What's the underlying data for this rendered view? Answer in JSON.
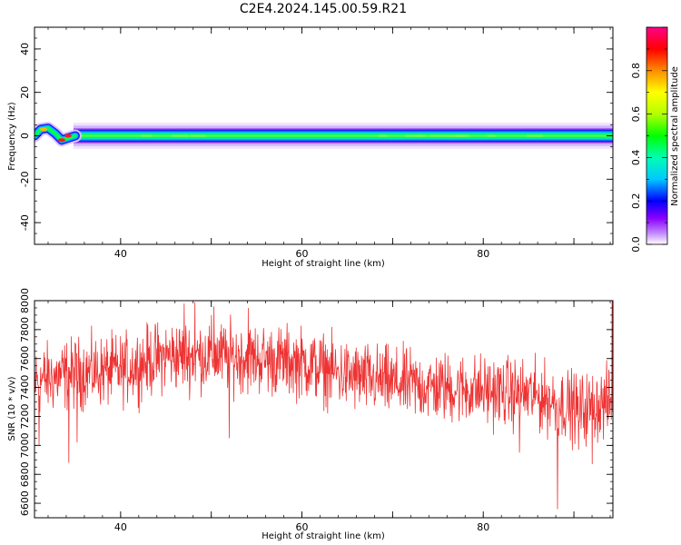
{
  "title": "C2E4.2024.145.00.59.R21",
  "chart_data": [
    {
      "type": "heatmap",
      "xlabel": "Height of straight line (km)",
      "ylabel": "Frequency (Hz)",
      "xlim": [
        30.5,
        94.3
      ],
      "ylim": [
        -50,
        50
      ],
      "xticks": [
        40,
        60,
        80
      ],
      "yticks": [
        -40,
        -20,
        0,
        20,
        40
      ],
      "colorbar": {
        "label": "Normalized spectral amplitude",
        "range": [
          0,
          1
        ],
        "ticks": [
          "0.0",
          "0.2",
          "0.4",
          "0.6",
          "0.8"
        ]
      },
      "band": {
        "center_hz": 0,
        "main_halfwidth_hz": 2.5,
        "faint_halfwidth_hz": 6,
        "peak_amplitude": 0.9,
        "early_features": [
          {
            "x": 31.5,
            "y": 3,
            "amplitude": 0.8
          },
          {
            "x": 33.5,
            "y": -2,
            "amplitude": 0.95
          },
          {
            "x": 34.2,
            "y": 0,
            "amplitude": 0.9
          }
        ]
      }
    },
    {
      "type": "line",
      "xlabel": "Height of straight line (km)",
      "ylabel": "SNR (10 * v/v)",
      "xlim": [
        30.5,
        94.3
      ],
      "ylim": [
        6500,
        8000
      ],
      "xticks": [
        40,
        60,
        80
      ],
      "yticks": [
        6600,
        6800,
        7000,
        7200,
        7400,
        7600,
        7800,
        8000
      ],
      "color": "#ee3333",
      "trend": [
        {
          "x": 31,
          "y": 7450
        },
        {
          "x": 35,
          "y": 7500
        },
        {
          "x": 40,
          "y": 7520
        },
        {
          "x": 45,
          "y": 7620
        },
        {
          "x": 50,
          "y": 7620
        },
        {
          "x": 55,
          "y": 7600
        },
        {
          "x": 60,
          "y": 7570
        },
        {
          "x": 65,
          "y": 7480
        },
        {
          "x": 70,
          "y": 7430
        },
        {
          "x": 75,
          "y": 7400
        },
        {
          "x": 80,
          "y": 7380
        },
        {
          "x": 85,
          "y": 7350
        },
        {
          "x": 88,
          "y": 7300
        },
        {
          "x": 91,
          "y": 7250
        },
        {
          "x": 94,
          "y": 7300
        }
      ],
      "noise_amplitude": 170,
      "spikes_down": [
        {
          "x": 31.0,
          "y": 7000
        },
        {
          "x": 34.3,
          "y": 6880
        },
        {
          "x": 35.2,
          "y": 7020
        },
        {
          "x": 52.0,
          "y": 7050
        },
        {
          "x": 84.0,
          "y": 6950
        },
        {
          "x": 88.2,
          "y": 6560
        },
        {
          "x": 90.5,
          "y": 6970
        },
        {
          "x": 92.0,
          "y": 6870
        }
      ],
      "spikes_up": [
        {
          "x": 47.0,
          "y": 7980
        },
        {
          "x": 48.2,
          "y": 7990
        },
        {
          "x": 50.3,
          "y": 7960
        },
        {
          "x": 54.1,
          "y": 7950
        },
        {
          "x": 94.2,
          "y": 8000
        }
      ]
    }
  ]
}
